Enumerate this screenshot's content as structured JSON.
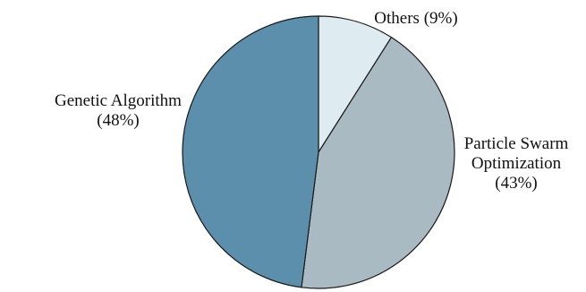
{
  "chart_data": {
    "type": "pie",
    "title": "",
    "slices": [
      {
        "label": "Others",
        "value": 9,
        "display": "Others (9%)",
        "color": "#deebf1"
      },
      {
        "label": "Particle Swarm Optimization",
        "value": 43,
        "display": "Particle Swarm|Optimization|(43%)",
        "color": "#a9bac3"
      },
      {
        "label": "Genetic Algorithm",
        "value": 48,
        "display": "Genetic Algorithm|(48%)",
        "color": "#5b8fab"
      }
    ],
    "start_angle_deg": 0,
    "direction": "clockwise",
    "legend": "none"
  }
}
